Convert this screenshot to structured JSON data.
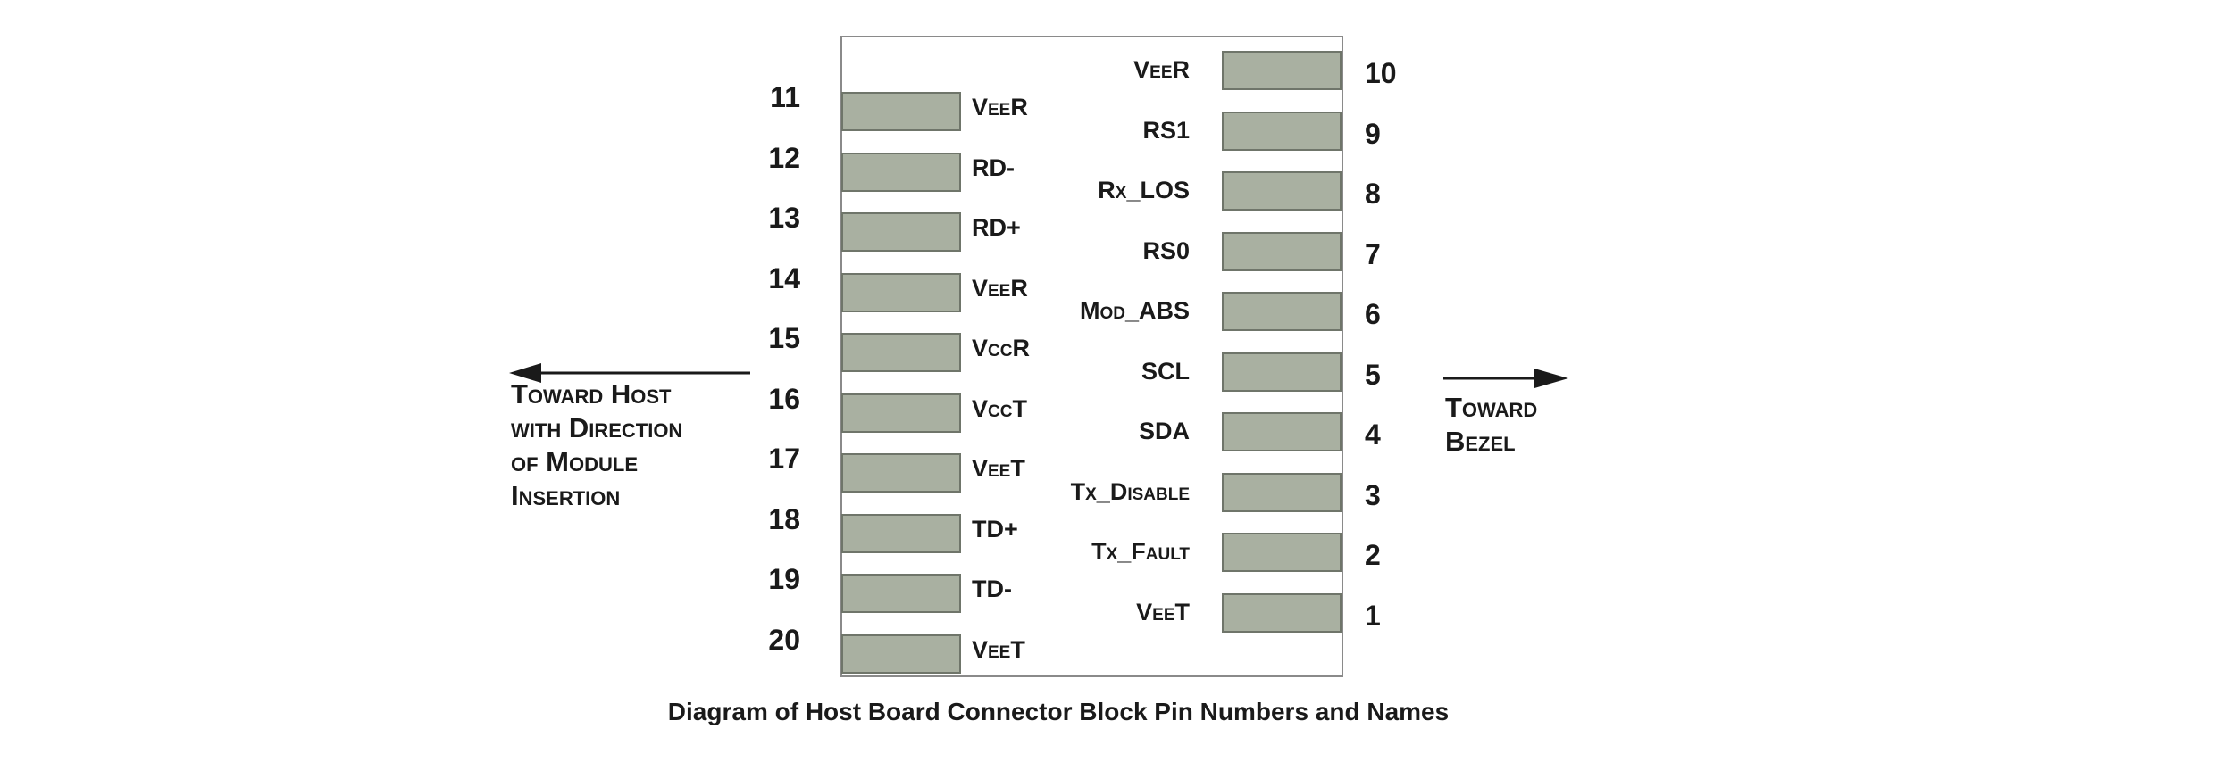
{
  "caption": "Diagram of Host Board Connector Block Pin Numbers and Names",
  "left_direction": [
    "Toward Host",
    "with Direction",
    "of Module",
    "Insertion"
  ],
  "right_direction": [
    "Toward",
    "Bezel"
  ],
  "pins_left": [
    {
      "number": "11",
      "name": "VeeR"
    },
    {
      "number": "12",
      "name": "RD-"
    },
    {
      "number": "13",
      "name": "RD+"
    },
    {
      "number": "14",
      "name": "VeeR"
    },
    {
      "number": "15",
      "name": "VccR"
    },
    {
      "number": "16",
      "name": "VccT"
    },
    {
      "number": "17",
      "name": "VeeT"
    },
    {
      "number": "18",
      "name": "TD+"
    },
    {
      "number": "19",
      "name": "TD-"
    },
    {
      "number": "20",
      "name": "VeeT"
    }
  ],
  "pins_right": [
    {
      "number": "10",
      "name": "VeeR"
    },
    {
      "number": "9",
      "name": "RS1"
    },
    {
      "number": "8",
      "name": "Rx_LOS"
    },
    {
      "number": "7",
      "name": "RS0"
    },
    {
      "number": "6",
      "name": "Mod_ABS"
    },
    {
      "number": "5",
      "name": "SCL"
    },
    {
      "number": "4",
      "name": "SDA"
    },
    {
      "number": "3",
      "name": "Tx_Disable"
    },
    {
      "number": "2",
      "name": "Tx_Fault"
    },
    {
      "number": "1",
      "name": "VeeT"
    }
  ],
  "colors": {
    "pad_fill": "#a9b0a1",
    "pad_border": "#6f756a",
    "outline": "#8a8a8a"
  }
}
